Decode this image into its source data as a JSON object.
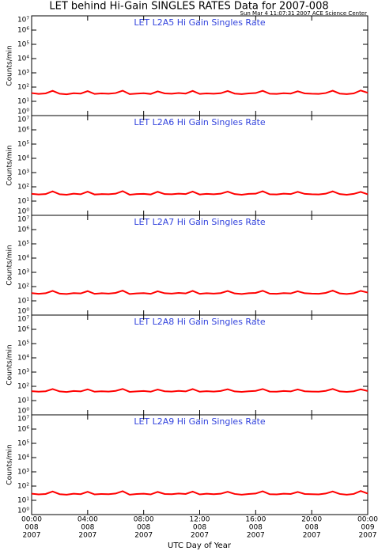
{
  "title": "LET behind Hi-Gain SINGLES RATES Data for 2007-008",
  "timestamp": "Sun Mar  4 11:07:31 2007 ACE Science Center",
  "xlabel": "UTC Day of Year",
  "xlim": [
    0,
    24
  ],
  "xticks": [
    {
      "value": 0,
      "label": [
        "00:00",
        "008",
        "2007"
      ]
    },
    {
      "value": 4,
      "label": [
        "04:00",
        "008",
        "2007"
      ]
    },
    {
      "value": 8,
      "label": [
        "08:00",
        "008",
        "2007"
      ]
    },
    {
      "value": 12,
      "label": [
        "12:00",
        "008",
        "2007"
      ]
    },
    {
      "value": 16,
      "label": [
        "16:00",
        "008",
        "2007"
      ]
    },
    {
      "value": 20,
      "label": [
        "20:00",
        "008",
        "2007"
      ]
    },
    {
      "value": 24,
      "label": [
        "00:00",
        "009",
        "2007"
      ]
    }
  ],
  "x": [
    0,
    0.5,
    1,
    1.5,
    2,
    2.5,
    3,
    3.5,
    4,
    4.5,
    5,
    5.5,
    6,
    6.5,
    7,
    7.5,
    8,
    8.5,
    9,
    9.5,
    10,
    10.5,
    11,
    11.5,
    12,
    12.5,
    13,
    13.5,
    14,
    14.5,
    15,
    15.5,
    16,
    16.5,
    17,
    17.5,
    18,
    18.5,
    19,
    19.5,
    20,
    20.5,
    21,
    21.5,
    22,
    22.5,
    23,
    23.5,
    24
  ],
  "chart_data": [
    {
      "type": "line",
      "title": "LET L2A5 Hi Gain Singles Rate",
      "ylabel": "Counts/min",
      "log_y": true,
      "color": "#ff0000",
      "ylim": [
        1,
        10000000
      ],
      "yticks": [
        {
          "value": 1,
          "label": "10⁰"
        },
        {
          "value": 10,
          "label": "10¹"
        },
        {
          "value": 100,
          "label": "10²"
        },
        {
          "value": 1000,
          "label": "10³"
        },
        {
          "value": 10000,
          "label": "10⁴"
        },
        {
          "value": 100000,
          "label": "10⁵"
        },
        {
          "value": 1000000,
          "label": "10⁶"
        },
        {
          "value": 10000000,
          "label": "10⁷"
        }
      ],
      "values": [
        38,
        33,
        36,
        55,
        34,
        31,
        37,
        35,
        52,
        33,
        36,
        34,
        38,
        56,
        32,
        35,
        37,
        33,
        50,
        36,
        34,
        38,
        35,
        54,
        33,
        36,
        34,
        37,
        53,
        35,
        32,
        36,
        38,
        55,
        34,
        33,
        37,
        35,
        51,
        36,
        34,
        33,
        38,
        56,
        35,
        32,
        36,
        58,
        40
      ]
    },
    {
      "type": "line",
      "title": "LET L2A6 Hi Gain Singles Rate",
      "ylabel": "Counts/min",
      "log_y": true,
      "color": "#ff0000",
      "ylim": [
        1,
        10000000
      ],
      "yticks": [
        {
          "value": 1,
          "label": "10⁰"
        },
        {
          "value": 10,
          "label": "10¹"
        },
        {
          "value": 100,
          "label": "10²"
        },
        {
          "value": 1000,
          "label": "10³"
        },
        {
          "value": 10000,
          "label": "10⁴"
        },
        {
          "value": 100000,
          "label": "10⁵"
        },
        {
          "value": 1000000,
          "label": "10⁶"
        },
        {
          "value": 10000000,
          "label": "10⁷"
        }
      ],
      "values": [
        32,
        29,
        31,
        48,
        30,
        28,
        33,
        30,
        46,
        29,
        31,
        30,
        33,
        50,
        28,
        31,
        32,
        29,
        45,
        31,
        30,
        33,
        31,
        47,
        29,
        32,
        30,
        33,
        46,
        31,
        28,
        32,
        33,
        49,
        30,
        29,
        33,
        31,
        45,
        32,
        30,
        29,
        33,
        48,
        31,
        28,
        32,
        44,
        30
      ]
    },
    {
      "type": "line",
      "title": "LET L2A7 Hi Gain Singles Rate",
      "ylabel": "Counts/min",
      "log_y": true,
      "color": "#ff0000",
      "ylim": [
        1,
        10000000
      ],
      "yticks": [
        {
          "value": 1,
          "label": "10⁰"
        },
        {
          "value": 10,
          "label": "10¹"
        },
        {
          "value": 100,
          "label": "10²"
        },
        {
          "value": 1000,
          "label": "10³"
        },
        {
          "value": 10000,
          "label": "10⁴"
        },
        {
          "value": 100000,
          "label": "10⁵"
        },
        {
          "value": 1000000,
          "label": "10⁶"
        },
        {
          "value": 10000000,
          "label": "10⁷"
        }
      ],
      "values": [
        35,
        31,
        34,
        50,
        32,
        30,
        35,
        33,
        48,
        31,
        34,
        32,
        36,
        52,
        30,
        33,
        35,
        31,
        47,
        34,
        32,
        36,
        33,
        50,
        31,
        34,
        32,
        35,
        49,
        33,
        30,
        34,
        36,
        51,
        32,
        31,
        35,
        33,
        47,
        34,
        32,
        31,
        36,
        52,
        33,
        30,
        34,
        50,
        38
      ]
    },
    {
      "type": "line",
      "title": "LET L2A8 Hi Gain Singles Rate",
      "ylabel": "Counts/min",
      "log_y": true,
      "color": "#ff0000",
      "ylim": [
        1,
        10000000
      ],
      "yticks": [
        {
          "value": 1,
          "label": "10⁰"
        },
        {
          "value": 10,
          "label": "10¹"
        },
        {
          "value": 100,
          "label": "10²"
        },
        {
          "value": 1000,
          "label": "10³"
        },
        {
          "value": 10000,
          "label": "10⁴"
        },
        {
          "value": 100000,
          "label": "10⁵"
        },
        {
          "value": 1000000,
          "label": "10⁶"
        },
        {
          "value": 10000000,
          "label": "10⁷"
        }
      ],
      "values": [
        46,
        42,
        45,
        65,
        44,
        40,
        47,
        44,
        62,
        42,
        45,
        43,
        48,
        66,
        41,
        44,
        47,
        42,
        60,
        45,
        43,
        48,
        44,
        64,
        42,
        46,
        43,
        47,
        63,
        44,
        41,
        45,
        48,
        65,
        43,
        42,
        47,
        44,
        61,
        45,
        43,
        42,
        48,
        66,
        44,
        41,
        45,
        62,
        47
      ]
    },
    {
      "type": "line",
      "title": "LET L2A9 Hi Gain Singles Rate",
      "ylabel": "Counts/min",
      "log_y": true,
      "color": "#ff0000",
      "ylim": [
        1,
        10000000
      ],
      "yticks": [
        {
          "value": 1,
          "label": "10⁰"
        },
        {
          "value": 10,
          "label": "10¹"
        },
        {
          "value": 100,
          "label": "10²"
        },
        {
          "value": 1000,
          "label": "10³"
        },
        {
          "value": 10000,
          "label": "10⁴"
        },
        {
          "value": 100000,
          "label": "10⁵"
        },
        {
          "value": 1000000,
          "label": "10⁶"
        },
        {
          "value": 10000000,
          "label": "10⁷"
        }
      ],
      "values": [
        29,
        26,
        28,
        42,
        27,
        25,
        29,
        27,
        40,
        26,
        28,
        27,
        30,
        44,
        25,
        28,
        29,
        26,
        39,
        28,
        27,
        30,
        28,
        41,
        26,
        29,
        27,
        29,
        40,
        28,
        25,
        28,
        30,
        43,
        27,
        26,
        29,
        28,
        39,
        28,
        27,
        26,
        30,
        42,
        28,
        25,
        28,
        45,
        30
      ]
    }
  ]
}
